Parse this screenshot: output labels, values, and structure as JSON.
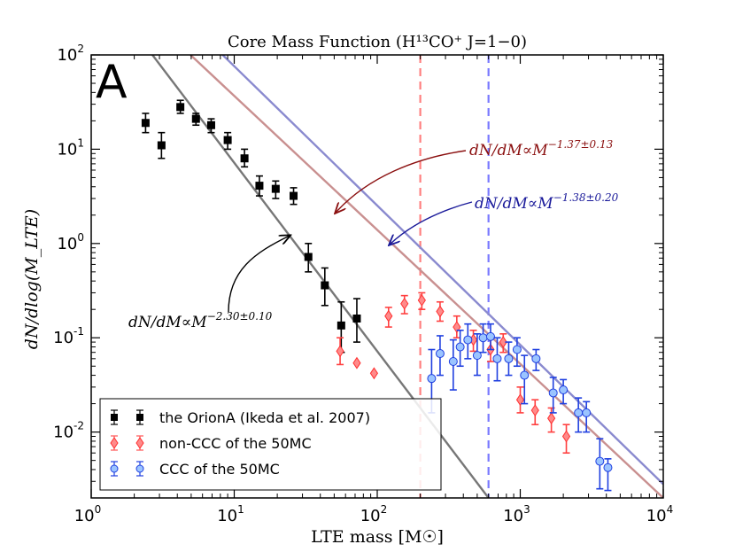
{
  "chart_data": {
    "type": "scatter",
    "panel_label": "A",
    "title": "Core Mass Function (H¹³CO⁺ J=1−0)",
    "xlabel": "LTE mass [M☉]",
    "ylabel": "dN/dlog(M_LTE)",
    "x_scale": "log",
    "y_scale": "log",
    "xlim": [
      1,
      10000
    ],
    "ylim": [
      0.002,
      100
    ],
    "x_ticks": [
      {
        "value": 1,
        "base": "10",
        "exp": "0"
      },
      {
        "value": 10,
        "base": "10",
        "exp": "1"
      },
      {
        "value": 100,
        "base": "10",
        "exp": "2"
      },
      {
        "value": 1000,
        "base": "10",
        "exp": "3"
      },
      {
        "value": 10000,
        "base": "10",
        "exp": "4"
      }
    ],
    "y_ticks": [
      {
        "value": 0.01,
        "base": "10",
        "exp": "-2"
      },
      {
        "value": 0.1,
        "base": "10",
        "exp": "-1"
      },
      {
        "value": 1,
        "base": "10",
        "exp": "0"
      },
      {
        "value": 10,
        "base": "10",
        "exp": "1"
      },
      {
        "value": 100,
        "base": "10",
        "exp": "2"
      }
    ],
    "vlines": [
      {
        "x": 200,
        "color": "#ff8080"
      },
      {
        "x": 600,
        "color": "#7a7aff"
      }
    ],
    "series": [
      {
        "name": "the OrionA (Ikeda et al. 2007)",
        "marker": "square",
        "color": "#000000",
        "points": [
          {
            "x": 2.4,
            "y": 19,
            "lo": 15,
            "hi": 24
          },
          {
            "x": 3.1,
            "y": 11,
            "lo": 8,
            "hi": 15
          },
          {
            "x": 4.2,
            "y": 28,
            "lo": 24,
            "hi": 33
          },
          {
            "x": 5.4,
            "y": 21,
            "lo": 18,
            "hi": 24
          },
          {
            "x": 6.9,
            "y": 18,
            "lo": 15,
            "hi": 21
          },
          {
            "x": 9.0,
            "y": 12.5,
            "lo": 10,
            "hi": 15
          },
          {
            "x": 11.8,
            "y": 8,
            "lo": 6.5,
            "hi": 10
          },
          {
            "x": 15.0,
            "y": 4.1,
            "lo": 3.2,
            "hi": 5.2
          },
          {
            "x": 19.5,
            "y": 3.8,
            "lo": 3.0,
            "hi": 4.6
          },
          {
            "x": 26.0,
            "y": 3.2,
            "lo": 2.6,
            "hi": 3.9
          },
          {
            "x": 33.0,
            "y": 0.72,
            "lo": 0.5,
            "hi": 1.0
          },
          {
            "x": 43.0,
            "y": 0.36,
            "lo": 0.22,
            "hi": 0.55
          },
          {
            "x": 56.0,
            "y": 0.135,
            "lo": 0.07,
            "hi": 0.24
          },
          {
            "x": 72.0,
            "y": 0.16,
            "lo": 0.09,
            "hi": 0.26
          }
        ]
      },
      {
        "name": "non-CCC of the 50MC",
        "marker": "diamond",
        "color": "#ff5555",
        "points": [
          {
            "x": 55.0,
            "y": 0.072,
            "lo": 0.052,
            "hi": 0.1
          },
          {
            "x": 72.0,
            "y": 0.054
          },
          {
            "x": 95.0,
            "y": 0.042
          },
          {
            "x": 120.0,
            "y": 0.17,
            "lo": 0.13,
            "hi": 0.21
          },
          {
            "x": 155.0,
            "y": 0.23,
            "lo": 0.18,
            "hi": 0.28
          },
          {
            "x": 205.0,
            "y": 0.25,
            "lo": 0.2,
            "hi": 0.3
          },
          {
            "x": 275.0,
            "y": 0.19,
            "lo": 0.15,
            "hi": 0.24
          },
          {
            "x": 360.0,
            "y": 0.13,
            "lo": 0.1,
            "hi": 0.17
          },
          {
            "x": 470.0,
            "y": 0.095,
            "lo": 0.072,
            "hi": 0.12
          },
          {
            "x": 620.0,
            "y": 0.075,
            "lo": 0.056,
            "hi": 0.1
          },
          {
            "x": 760.0,
            "y": 0.09,
            "lo": 0.07,
            "hi": 0.11
          },
          {
            "x": 1000.0,
            "y": 0.022,
            "lo": 0.016,
            "hi": 0.03
          },
          {
            "x": 1270.0,
            "y": 0.017,
            "lo": 0.012,
            "hi": 0.022
          },
          {
            "x": 1650.0,
            "y": 0.014,
            "lo": 0.01,
            "hi": 0.018
          },
          {
            "x": 2100.0,
            "y": 0.009,
            "lo": 0.006,
            "hi": 0.012
          }
        ]
      },
      {
        "name": "CCC of the 50MC",
        "marker": "circle",
        "color": "#9bc4ff",
        "points": [
          {
            "x": 240.0,
            "y": 0.037,
            "lo": 0.016,
            "hi": 0.075
          },
          {
            "x": 275.0,
            "y": 0.068,
            "lo": 0.04,
            "hi": 0.105
          },
          {
            "x": 340.0,
            "y": 0.056,
            "lo": 0.028,
            "hi": 0.095
          },
          {
            "x": 380.0,
            "y": 0.08,
            "lo": 0.05,
            "hi": 0.12
          },
          {
            "x": 430.0,
            "y": 0.095,
            "lo": 0.06,
            "hi": 0.14
          },
          {
            "x": 500.0,
            "y": 0.065,
            "lo": 0.04,
            "hi": 0.11
          },
          {
            "x": 550.0,
            "y": 0.1,
            "lo": 0.07,
            "hi": 0.14
          },
          {
            "x": 620.0,
            "y": 0.103,
            "lo": 0.075,
            "hi": 0.14
          },
          {
            "x": 690.0,
            "y": 0.06,
            "lo": 0.035,
            "hi": 0.1
          },
          {
            "x": 830.0,
            "y": 0.06,
            "lo": 0.04,
            "hi": 0.09
          },
          {
            "x": 950.0,
            "y": 0.075,
            "lo": 0.05,
            "hi": 0.1
          },
          {
            "x": 1070.0,
            "y": 0.04,
            "lo": 0.02,
            "hi": 0.065
          },
          {
            "x": 1290.0,
            "y": 0.06,
            "lo": 0.045,
            "hi": 0.075
          },
          {
            "x": 1700.0,
            "y": 0.026,
            "lo": 0.016,
            "hi": 0.038
          },
          {
            "x": 2000.0,
            "y": 0.028,
            "lo": 0.02,
            "hi": 0.036
          },
          {
            "x": 2550.0,
            "y": 0.016,
            "lo": 0.01,
            "hi": 0.023
          },
          {
            "x": 2900.0,
            "y": 0.016,
            "lo": 0.01,
            "hi": 0.021
          },
          {
            "x": 3600.0,
            "y": 0.0049,
            "lo": 0.0025,
            "hi": 0.0085
          },
          {
            "x": 4100.0,
            "y": 0.0042,
            "lo": 0.0024,
            "hi": 0.0052
          }
        ]
      }
    ],
    "fit_lines": [
      {
        "name": "OrionA fit",
        "color": "#777777",
        "points": [
          [
            2.68,
            100
          ],
          [
            600,
            0.002
          ]
        ],
        "label": {
          "prefix": "dN/dM∝M",
          "exp": "−2.30±0.10",
          "color": "#000000"
        }
      },
      {
        "name": "non-CCC fit",
        "color": "#c99090",
        "points": [
          [
            4.95,
            100
          ],
          [
            10000,
            0.002
          ]
        ],
        "label": {
          "prefix": "dN/dM∝M",
          "exp": "−1.37±0.13",
          "color": "#8b1010"
        }
      },
      {
        "name": "CCC fit",
        "color": "#8a8acf",
        "points": [
          [
            8.3,
            100
          ],
          [
            10000,
            0.0028
          ]
        ],
        "label": {
          "prefix": "dN/dM∝M",
          "exp": "−1.38±0.20",
          "color": "#1a1a9a"
        }
      }
    ],
    "legend": {
      "position": "lower-left",
      "entries": [
        "the OrionA (Ikeda et al. 2007)",
        "non-CCC of the 50MC",
        "CCC of the 50MC"
      ]
    }
  }
}
